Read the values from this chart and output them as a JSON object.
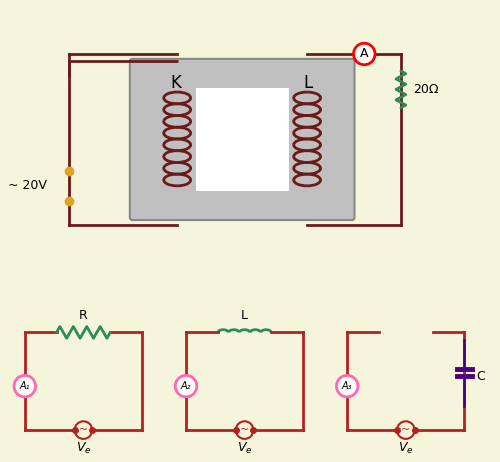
{
  "bg_color": "#f5f5dc",
  "wire_color_dark": "#6b1a1a",
  "wire_color_red": "#b22222",
  "coil_color": "#6b1a1a",
  "transformer_fill": "#c0c0c0",
  "transformer_stroke": "#888888",
  "resistor_color_green": "#2e8b57",
  "inductor_color_green": "#2e8b57",
  "capacitor_color": "#4b0082",
  "ammeter_circle_color": "#ff69b4",
  "ammeter_text_color": "#000000",
  "source_dot_color": "#daa520",
  "volt_label": "~ 20V",
  "ohm_label": "20Ω",
  "K_label": "K",
  "L_label": "L",
  "A_label": "A",
  "Ve_label": "V_e",
  "R_label": "R",
  "L2_label": "L",
  "C_label": "C",
  "circuit1_ammeter": "A₁",
  "circuit2_ammeter": "A₂",
  "circuit3_ammeter": "A₃"
}
